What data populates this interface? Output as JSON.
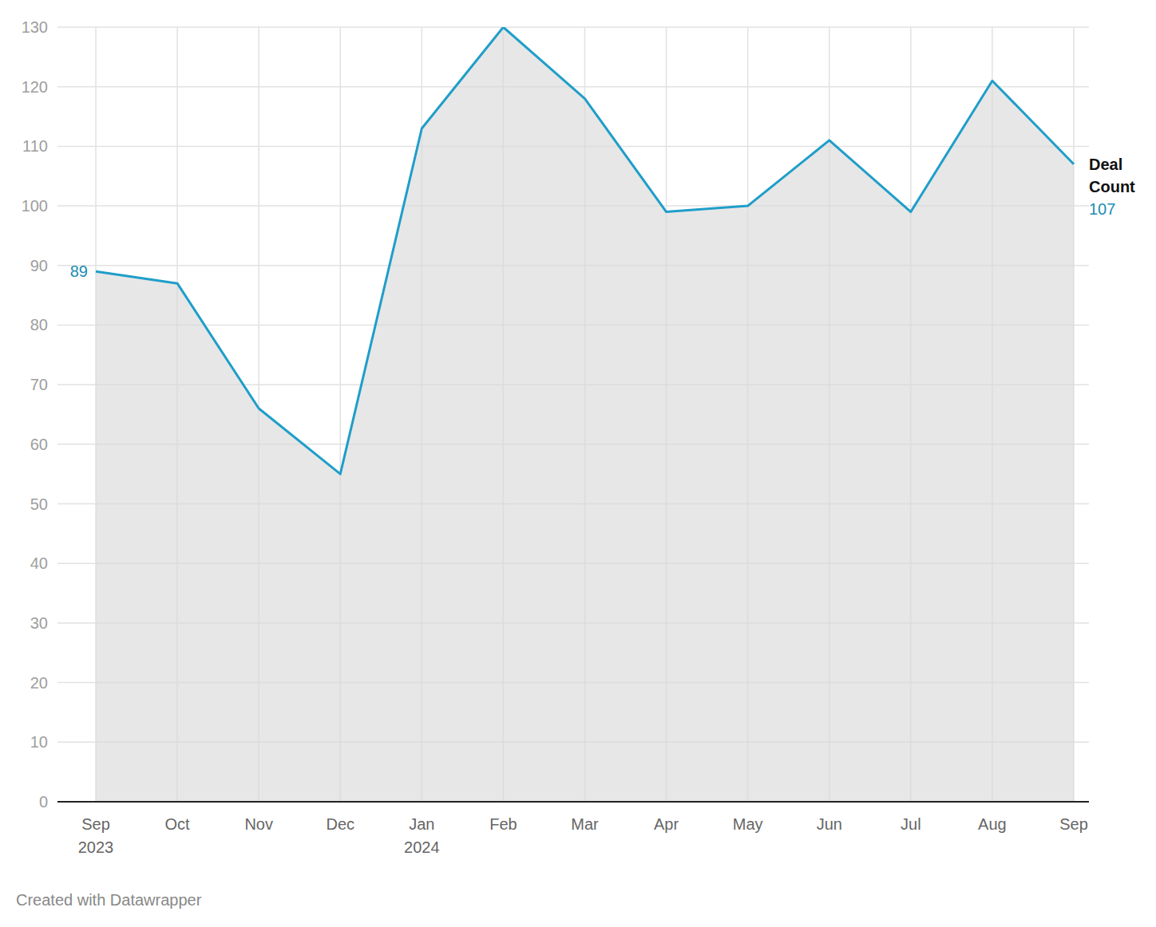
{
  "chart_data": {
    "type": "area",
    "categories": [
      "Sep 2023",
      "Oct",
      "Nov",
      "Dec",
      "Jan 2024",
      "Feb",
      "Mar",
      "Apr",
      "May",
      "Jun",
      "Jul",
      "Aug",
      "Sep"
    ],
    "series": [
      {
        "name": "Deal Count",
        "color": "#1f9ec9",
        "values": [
          89,
          87,
          66,
          55,
          113,
          130,
          118,
          99,
          100,
          111,
          99,
          121,
          107
        ]
      }
    ],
    "ylim": [
      0,
      130
    ],
    "yticks": [
      0,
      10,
      20,
      30,
      40,
      50,
      60,
      70,
      80,
      90,
      100,
      110,
      120,
      130
    ],
    "grid": true,
    "credit": "Created with Datawrapper"
  }
}
